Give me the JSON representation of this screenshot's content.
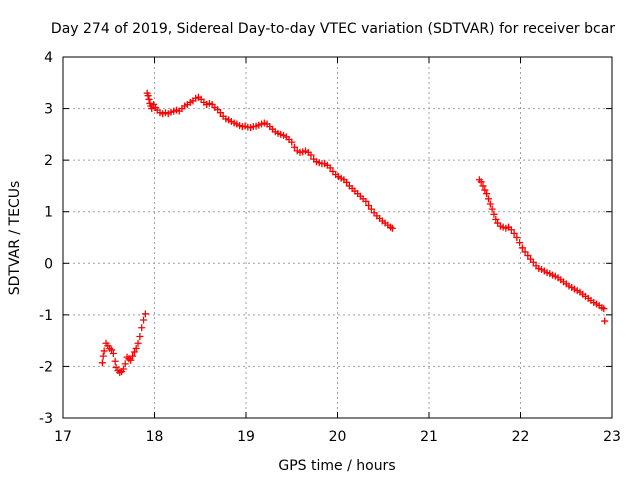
{
  "chart_data": {
    "type": "scatter",
    "title": "Day 274 of 2019, Sidereal Day-to-day VTEC variation (SDTVAR) for receiver bcar",
    "xlabel": "GPS time / hours",
    "ylabel": "SDTVAR / TECUs",
    "xlim": [
      17,
      23
    ],
    "ylim": [
      -3,
      4
    ],
    "xticks": [
      "17",
      "18",
      "19",
      "20",
      "21",
      "22",
      "23"
    ],
    "yticks": [
      "-3",
      "-2",
      "-1",
      "0",
      "1",
      "2",
      "3",
      "4"
    ],
    "grid": true,
    "marker": "plus",
    "series_color": "#ff0000",
    "series": [
      {
        "name": "bcar",
        "points": [
          [
            17.43,
            -1.93
          ],
          [
            17.44,
            -1.8
          ],
          [
            17.45,
            -1.7
          ],
          [
            17.47,
            -1.55
          ],
          [
            17.49,
            -1.6
          ],
          [
            17.51,
            -1.65
          ],
          [
            17.53,
            -1.68
          ],
          [
            17.55,
            -1.75
          ],
          [
            17.57,
            -1.9
          ],
          [
            17.58,
            -2.02
          ],
          [
            17.6,
            -2.08
          ],
          [
            17.62,
            -2.12
          ],
          [
            17.64,
            -2.1
          ],
          [
            17.66,
            -2.05
          ],
          [
            17.68,
            -1.95
          ],
          [
            17.7,
            -1.82
          ],
          [
            17.72,
            -1.85
          ],
          [
            17.74,
            -1.88
          ],
          [
            17.76,
            -1.8
          ],
          [
            17.78,
            -1.72
          ],
          [
            17.8,
            -1.65
          ],
          [
            17.82,
            -1.55
          ],
          [
            17.84,
            -1.42
          ],
          [
            17.86,
            -1.25
          ],
          [
            17.88,
            -1.1
          ],
          [
            17.9,
            -0.98
          ],
          [
            17.92,
            3.3
          ],
          [
            17.93,
            3.25
          ],
          [
            17.94,
            3.18
          ],
          [
            17.95,
            3.1
          ],
          [
            17.96,
            3.05
          ],
          [
            17.97,
            3.0
          ],
          [
            17.99,
            3.08
          ],
          [
            18.01,
            3.02
          ],
          [
            18.03,
            2.97
          ],
          [
            18.06,
            2.92
          ],
          [
            18.09,
            2.9
          ],
          [
            18.12,
            2.92
          ],
          [
            18.15,
            2.9
          ],
          [
            18.18,
            2.93
          ],
          [
            18.21,
            2.95
          ],
          [
            18.24,
            2.97
          ],
          [
            18.27,
            2.95
          ],
          [
            18.3,
            3.0
          ],
          [
            18.33,
            3.05
          ],
          [
            18.36,
            3.08
          ],
          [
            18.39,
            3.12
          ],
          [
            18.42,
            3.15
          ],
          [
            18.45,
            3.2
          ],
          [
            18.48,
            3.22
          ],
          [
            18.51,
            3.18
          ],
          [
            18.54,
            3.12
          ],
          [
            18.57,
            3.08
          ],
          [
            18.6,
            3.1
          ],
          [
            18.63,
            3.08
          ],
          [
            18.66,
            3.02
          ],
          [
            18.69,
            2.98
          ],
          [
            18.72,
            2.92
          ],
          [
            18.75,
            2.85
          ],
          [
            18.78,
            2.8
          ],
          [
            18.81,
            2.78
          ],
          [
            18.84,
            2.75
          ],
          [
            18.87,
            2.72
          ],
          [
            18.9,
            2.7
          ],
          [
            18.93,
            2.67
          ],
          [
            18.96,
            2.65
          ],
          [
            18.99,
            2.66
          ],
          [
            19.02,
            2.64
          ],
          [
            19.05,
            2.63
          ],
          [
            19.08,
            2.65
          ],
          [
            19.11,
            2.66
          ],
          [
            19.14,
            2.68
          ],
          [
            19.17,
            2.7
          ],
          [
            19.2,
            2.72
          ],
          [
            19.23,
            2.7
          ],
          [
            19.26,
            2.65
          ],
          [
            19.29,
            2.6
          ],
          [
            19.32,
            2.55
          ],
          [
            19.35,
            2.52
          ],
          [
            19.38,
            2.5
          ],
          [
            19.41,
            2.48
          ],
          [
            19.44,
            2.45
          ],
          [
            19.47,
            2.4
          ],
          [
            19.5,
            2.35
          ],
          [
            19.53,
            2.25
          ],
          [
            19.56,
            2.18
          ],
          [
            19.59,
            2.15
          ],
          [
            19.62,
            2.16
          ],
          [
            19.65,
            2.18
          ],
          [
            19.68,
            2.15
          ],
          [
            19.71,
            2.1
          ],
          [
            19.74,
            2.02
          ],
          [
            19.77,
            1.97
          ],
          [
            19.8,
            1.95
          ],
          [
            19.83,
            1.93
          ],
          [
            19.86,
            1.93
          ],
          [
            19.89,
            1.9
          ],
          [
            19.92,
            1.85
          ],
          [
            19.95,
            1.78
          ],
          [
            19.98,
            1.72
          ],
          [
            20.01,
            1.68
          ],
          [
            20.04,
            1.65
          ],
          [
            20.07,
            1.62
          ],
          [
            20.1,
            1.57
          ],
          [
            20.13,
            1.5
          ],
          [
            20.16,
            1.45
          ],
          [
            20.19,
            1.4
          ],
          [
            20.22,
            1.35
          ],
          [
            20.25,
            1.3
          ],
          [
            20.28,
            1.25
          ],
          [
            20.31,
            1.2
          ],
          [
            20.34,
            1.12
          ],
          [
            20.37,
            1.05
          ],
          [
            20.4,
            0.98
          ],
          [
            20.43,
            0.92
          ],
          [
            20.46,
            0.87
          ],
          [
            20.49,
            0.82
          ],
          [
            20.52,
            0.78
          ],
          [
            20.55,
            0.74
          ],
          [
            20.58,
            0.7
          ],
          [
            20.6,
            0.68
          ],
          [
            21.55,
            1.62
          ],
          [
            21.57,
            1.58
          ],
          [
            21.59,
            1.5
          ],
          [
            21.61,
            1.42
          ],
          [
            21.63,
            1.35
          ],
          [
            21.65,
            1.25
          ],
          [
            21.67,
            1.15
          ],
          [
            21.69,
            1.05
          ],
          [
            21.71,
            0.95
          ],
          [
            21.73,
            0.85
          ],
          [
            21.75,
            0.78
          ],
          [
            21.78,
            0.72
          ],
          [
            21.81,
            0.7
          ],
          [
            21.84,
            0.68
          ],
          [
            21.87,
            0.7
          ],
          [
            21.9,
            0.65
          ],
          [
            21.93,
            0.58
          ],
          [
            21.96,
            0.5
          ],
          [
            21.99,
            0.4
          ],
          [
            22.02,
            0.3
          ],
          [
            22.05,
            0.22
          ],
          [
            22.08,
            0.15
          ],
          [
            22.11,
            0.08
          ],
          [
            22.14,
            0.02
          ],
          [
            22.17,
            -0.05
          ],
          [
            22.2,
            -0.1
          ],
          [
            22.23,
            -0.12
          ],
          [
            22.26,
            -0.15
          ],
          [
            22.29,
            -0.18
          ],
          [
            22.32,
            -0.2
          ],
          [
            22.35,
            -0.23
          ],
          [
            22.38,
            -0.25
          ],
          [
            22.41,
            -0.28
          ],
          [
            22.44,
            -0.32
          ],
          [
            22.47,
            -0.36
          ],
          [
            22.5,
            -0.4
          ],
          [
            22.53,
            -0.44
          ],
          [
            22.56,
            -0.47
          ],
          [
            22.59,
            -0.5
          ],
          [
            22.62,
            -0.53
          ],
          [
            22.65,
            -0.56
          ],
          [
            22.68,
            -0.6
          ],
          [
            22.71,
            -0.64
          ],
          [
            22.74,
            -0.68
          ],
          [
            22.77,
            -0.72
          ],
          [
            22.8,
            -0.76
          ],
          [
            22.83,
            -0.79
          ],
          [
            22.86,
            -0.82
          ],
          [
            22.89,
            -0.86
          ],
          [
            22.91,
            -0.88
          ],
          [
            22.92,
            -1.12
          ]
        ]
      }
    ]
  }
}
